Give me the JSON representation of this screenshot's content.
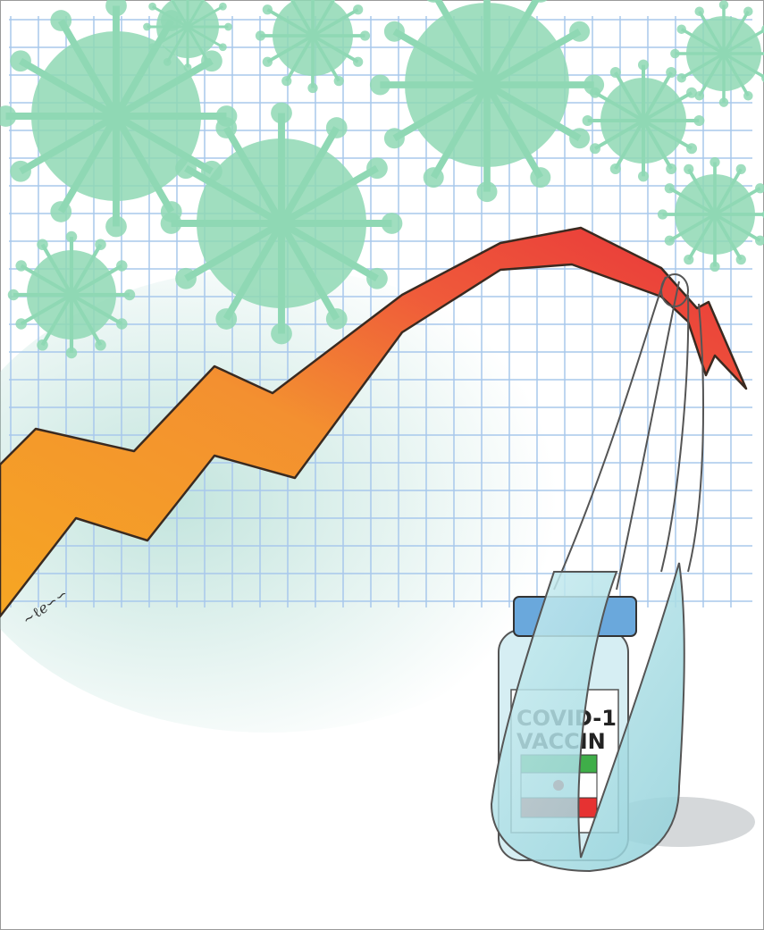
{
  "label": {
    "line1": "COVID-1",
    "line2": "VACCIN"
  }
}
